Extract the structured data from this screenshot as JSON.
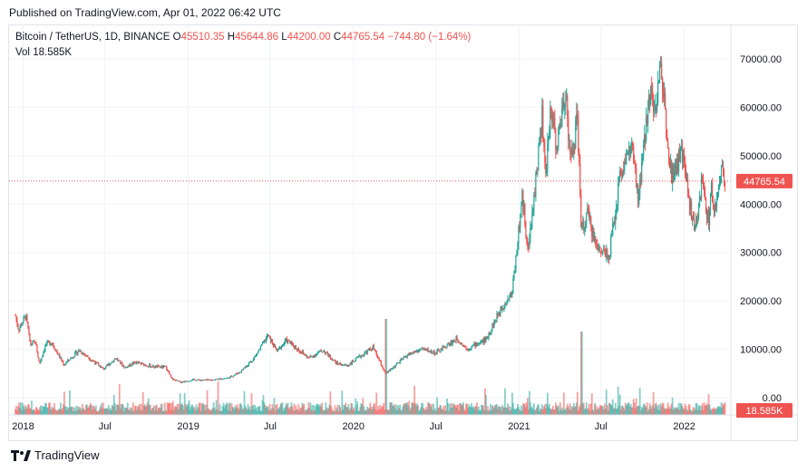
{
  "header": {
    "published": "Published on TradingView.com, Apr 01, 2022 06:42 UTC"
  },
  "legend": {
    "symbol": "Bitcoin / TetherUS, 1D, BINANCE",
    "o_label": "O",
    "o_value": "45510.35",
    "h_label": "H",
    "h_value": "45644.86",
    "l_label": "L",
    "l_value": "44200.00",
    "c_label": "C",
    "c_value": "44765.54",
    "change": "−744.80 (−1.64%)",
    "vol_label": "Vol",
    "vol_value": "18.585K"
  },
  "price_badge": "44765.54",
  "volume_badge": "18.585K",
  "brand": "TradingView",
  "colors": {
    "up": "#26a69a",
    "down": "#ef5350",
    "grid": "#f0f3fa",
    "axis_text": "#131722"
  },
  "chart_data": {
    "type": "candlestick",
    "symbol": "BTCUSDT",
    "interval": "1D",
    "y_ticks": [
      0,
      10000,
      20000,
      30000,
      40000,
      50000,
      60000,
      70000
    ],
    "y_tick_labels": [
      "0.00",
      "10000.00",
      "20000.00",
      "30000.00",
      "40000.00",
      "50000.00",
      "60000.00",
      "70000.00"
    ],
    "x_ticks": [
      {
        "label": "2018",
        "date": "2018-01-01"
      },
      {
        "label": "Jul",
        "date": "2018-07-01"
      },
      {
        "label": "2019",
        "date": "2019-01-01"
      },
      {
        "label": "Jul",
        "date": "2019-07-01"
      },
      {
        "label": "2020",
        "date": "2020-01-01"
      },
      {
        "label": "Jul",
        "date": "2020-07-01"
      },
      {
        "label": "2021",
        "date": "2021-01-01"
      },
      {
        "label": "Jul",
        "date": "2021-07-01"
      },
      {
        "label": "2022",
        "date": "2022-01-01"
      }
    ],
    "ylim": [
      0,
      75000
    ],
    "last_price": 44765.54,
    "last_volume": 18585,
    "price_path": [
      [
        "2017-12-15",
        17000
      ],
      [
        "2017-12-22",
        14000
      ],
      [
        "2018-01-07",
        17000
      ],
      [
        "2018-01-17",
        11000
      ],
      [
        "2018-01-28",
        11500
      ],
      [
        "2018-02-06",
        7000
      ],
      [
        "2018-02-20",
        11000
      ],
      [
        "2018-03-05",
        11500
      ],
      [
        "2018-04-01",
        6800
      ],
      [
        "2018-05-05",
        9800
      ],
      [
        "2018-06-28",
        5900
      ],
      [
        "2018-07-25",
        8200
      ],
      [
        "2018-08-14",
        6200
      ],
      [
        "2018-09-05",
        7300
      ],
      [
        "2018-10-15",
        6400
      ],
      [
        "2018-11-13",
        6300
      ],
      [
        "2018-11-25",
        3900
      ],
      [
        "2018-12-15",
        3200
      ],
      [
        "2019-01-10",
        3700
      ],
      [
        "2019-02-15",
        3600
      ],
      [
        "2019-03-31",
        4100
      ],
      [
        "2019-04-25",
        5300
      ],
      [
        "2019-05-25",
        8000
      ],
      [
        "2019-06-26",
        12800
      ],
      [
        "2019-07-16",
        9600
      ],
      [
        "2019-08-06",
        11900
      ],
      [
        "2019-09-24",
        8200
      ],
      [
        "2019-10-26",
        9800
      ],
      [
        "2019-11-25",
        7100
      ],
      [
        "2019-12-18",
        6600
      ],
      [
        "2020-02-13",
        10400
      ],
      [
        "2020-03-12",
        4900
      ],
      [
        "2020-04-29",
        8800
      ],
      [
        "2020-06-01",
        10100
      ],
      [
        "2020-07-01",
        9200
      ],
      [
        "2020-08-17",
        12200
      ],
      [
        "2020-09-08",
        10100
      ],
      [
        "2020-10-20",
        12000
      ],
      [
        "2020-11-25",
        19000
      ],
      [
        "2020-12-16",
        21500
      ],
      [
        "2021-01-08",
        41000
      ],
      [
        "2021-01-22",
        30500
      ],
      [
        "2021-02-21",
        58000
      ],
      [
        "2021-02-28",
        45000
      ],
      [
        "2021-03-13",
        61000
      ],
      [
        "2021-03-25",
        51500
      ],
      [
        "2021-04-14",
        64000
      ],
      [
        "2021-04-25",
        48000
      ],
      [
        "2021-05-10",
        58000
      ],
      [
        "2021-05-19",
        34000
      ],
      [
        "2021-06-01",
        38000
      ],
      [
        "2021-06-22",
        31000
      ],
      [
        "2021-07-20",
        29800
      ],
      [
        "2021-08-14",
        47000
      ],
      [
        "2021-09-07",
        52000
      ],
      [
        "2021-09-21",
        40500
      ],
      [
        "2021-10-20",
        66000
      ],
      [
        "2021-10-28",
        58000
      ],
      [
        "2021-11-10",
        68700
      ],
      [
        "2021-12-04",
        46000
      ],
      [
        "2021-12-27",
        50500
      ],
      [
        "2022-01-24",
        34000
      ],
      [
        "2022-02-10",
        45000
      ],
      [
        "2022-02-24",
        36000
      ],
      [
        "2022-03-02",
        44000
      ],
      [
        "2022-03-07",
        37500
      ],
      [
        "2022-03-28",
        47900
      ],
      [
        "2022-04-01",
        44765
      ]
    ]
  }
}
